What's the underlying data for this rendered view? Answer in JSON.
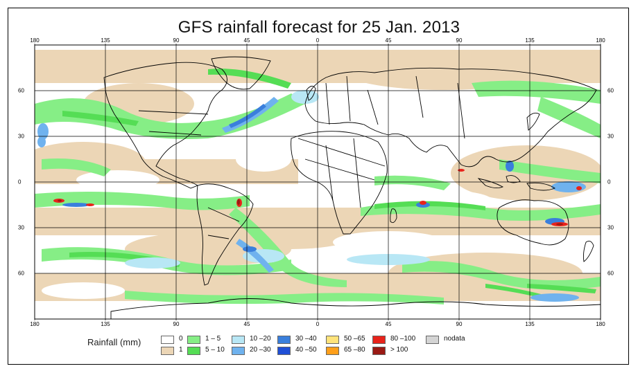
{
  "title": "GFS rainfall forecast for 25 Jan. 2013",
  "map": {
    "lon_ticks": [
      "180",
      "135",
      "90",
      "45",
      "0",
      "45",
      "90",
      "135",
      "180"
    ],
    "lat_ticks": [
      "60",
      "30",
      "0",
      "30",
      "60"
    ],
    "colors": {
      "land_border": "#000000",
      "grid": "#000000",
      "class_1": "#ecd6b6",
      "class_1_5": "#86ee86",
      "class_5_10": "#55dd55",
      "class_10_20": "#b8e7f5",
      "class_20_30": "#6fb2ee",
      "class_30_40": "#3a7fdc",
      "class_40_50": "#1f4fd6",
      "class_80_100": "#e8231b",
      "class_gt_100": "#9a1a14"
    }
  },
  "legend": {
    "title": "Rainfall (mm)",
    "items": [
      {
        "label": "0",
        "color": "#ffffff"
      },
      {
        "label": "1",
        "color": "#ecd6b6"
      },
      {
        "label": "1 – 5",
        "color": "#86ee86"
      },
      {
        "label": "5 – 10",
        "color": "#55dd55"
      },
      {
        "label": "10 –20",
        "color": "#b8e7f5"
      },
      {
        "label": "20 –30",
        "color": "#6fb2ee"
      },
      {
        "label": "30 –40",
        "color": "#3a7fdc"
      },
      {
        "label": "40 –50",
        "color": "#1f4fd6"
      },
      {
        "label": "50 –65",
        "color": "#ffe37a"
      },
      {
        "label": "65 –80",
        "color": "#ff9f1a"
      },
      {
        "label": "80 –100",
        "color": "#e8231b"
      },
      {
        "label": "> 100",
        "color": "#9a1a14"
      },
      {
        "label": "nodata",
        "color": "#d4d4d4"
      }
    ]
  }
}
